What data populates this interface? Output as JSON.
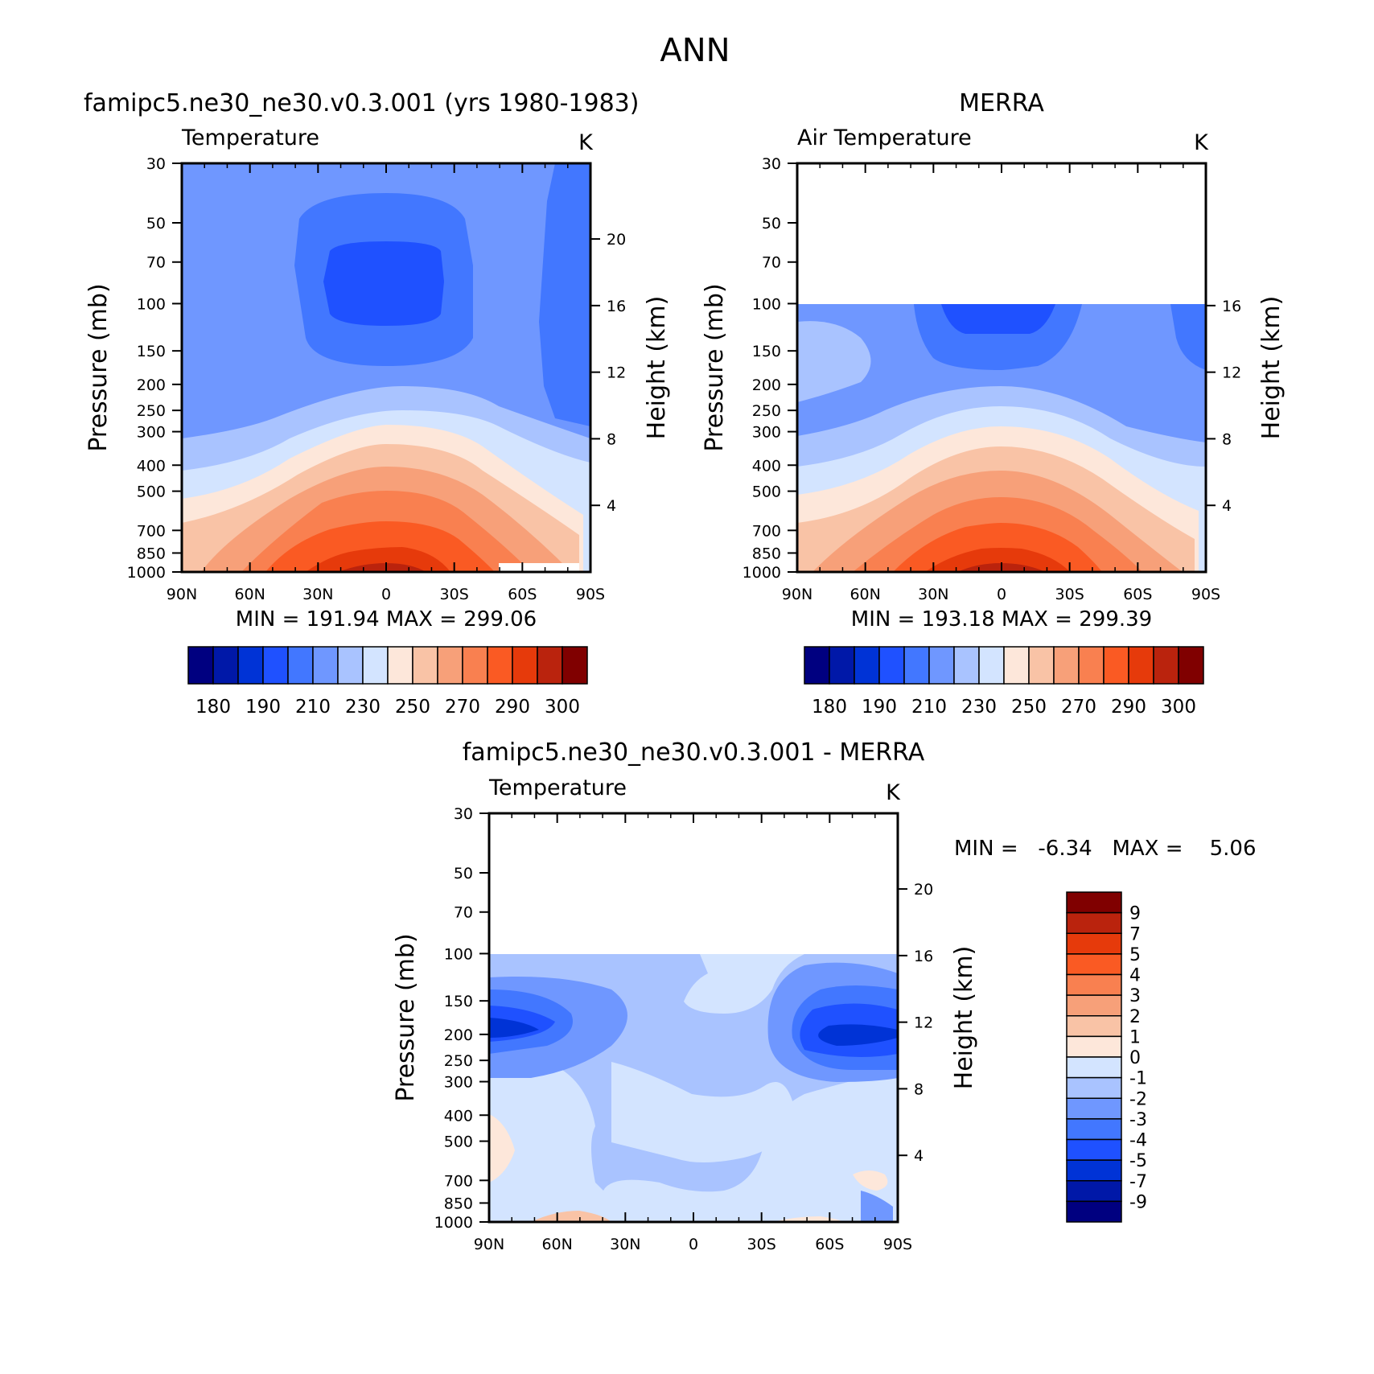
{
  "page_title": "ANN",
  "colors": {
    "abs_scale": [
      "#000080",
      "#0018a8",
      "#0033d6",
      "#1f51ff",
      "#4277ff",
      "#6f97ff",
      "#a9c3ff",
      "#d3e4ff",
      "#fde7da",
      "#f9c3a6",
      "#f7a079",
      "#f98050",
      "#fa5a23",
      "#e63a0b",
      "#ba230d",
      "#800000"
    ],
    "diff_scale": [
      "#000080",
      "#0018a8",
      "#0033d6",
      "#1f51ff",
      "#4277ff",
      "#6f97ff",
      "#a9c3ff",
      "#d3e4ff",
      "#fde7da",
      "#f9c3a6",
      "#f7a079",
      "#f98050",
      "#fa5a23",
      "#e63a0b",
      "#ba230d",
      "#800000"
    ]
  },
  "axes": {
    "ylabel_left": "Pressure (mb)",
    "ylabel_right": "Height (km)",
    "pressure_ticks": [
      "30",
      "50",
      "70",
      "100",
      "150",
      "200",
      "250",
      "300",
      "400",
      "500",
      "700",
      "850",
      "1000"
    ],
    "lat_ticks": [
      "90N",
      "60N",
      "30N",
      "0",
      "30S",
      "60S",
      "90S"
    ]
  },
  "panels": {
    "model": {
      "case_title": "famipc5.ne30_ne30.v0.3.001 (yrs 1980-1983)",
      "var_label": "Temperature",
      "units": "K",
      "stats": "MIN = 191.94   MAX = 299.06",
      "height_ticks": [
        "20",
        "16",
        "12",
        "8",
        "4"
      ],
      "colorbar_labels": [
        "180",
        "190",
        "210",
        "230",
        "250",
        "270",
        "290",
        "300"
      ]
    },
    "obs": {
      "case_title": "MERRA",
      "var_label": "Air Temperature",
      "units": "K",
      "stats": "MIN = 193.18   MAX = 299.39",
      "height_ticks": [
        "16",
        "12",
        "8",
        "4"
      ],
      "colorbar_labels": [
        "180",
        "190",
        "210",
        "230",
        "250",
        "270",
        "290",
        "300"
      ]
    },
    "diff": {
      "case_title": "famipc5.ne30_ne30.v0.3.001 - MERRA",
      "var_label": "Temperature",
      "units": "K",
      "stats": "MIN =   -6.34   MAX =    5.06",
      "height_ticks": [
        "20",
        "16",
        "12",
        "8",
        "4"
      ],
      "colorbar_labels": [
        "9",
        "7",
        "5",
        "4",
        "3",
        "2",
        "1",
        "0",
        "-1",
        "-2",
        "-3",
        "-4",
        "-5",
        "-7",
        "-9"
      ]
    }
  },
  "chart_data": [
    {
      "type": "heatmap",
      "title": "famipc5.ne30_ne30.v0.3.001 (yrs 1980-1983)",
      "subtitle": "Temperature",
      "xlabel": "",
      "ylabel": "Pressure (mb)",
      "x_ticks": [
        "90N",
        "60N",
        "30N",
        "0",
        "30S",
        "60S",
        "90S"
      ],
      "y_ticks": [
        30,
        50,
        70,
        100,
        150,
        200,
        250,
        300,
        400,
        500,
        700,
        850,
        1000
      ],
      "y_scale": "log",
      "units": "K",
      "min": 191.94,
      "max": 299.06,
      "levels": [
        180,
        185,
        190,
        200,
        210,
        220,
        230,
        240,
        250,
        260,
        270,
        280,
        290,
        295,
        300
      ]
    },
    {
      "type": "heatmap",
      "title": "MERRA",
      "subtitle": "Air Temperature",
      "xlabel": "",
      "ylabel": "Pressure (mb)",
      "x_ticks": [
        "90N",
        "60N",
        "30N",
        "0",
        "30S",
        "60S",
        "90S"
      ],
      "y_ticks": [
        30,
        50,
        70,
        100,
        150,
        200,
        250,
        300,
        400,
        500,
        700,
        850,
        1000
      ],
      "y_scale": "log",
      "units": "K",
      "min": 193.18,
      "max": 299.39,
      "levels": [
        180,
        185,
        190,
        200,
        210,
        220,
        230,
        240,
        250,
        260,
        270,
        280,
        290,
        295,
        300
      ]
    },
    {
      "type": "heatmap",
      "title": "famipc5.ne30_ne30.v0.3.001 - MERRA",
      "subtitle": "Temperature",
      "xlabel": "",
      "ylabel": "Pressure (mb)",
      "x_ticks": [
        "90N",
        "60N",
        "30N",
        "0",
        "30S",
        "60S",
        "90S"
      ],
      "y_ticks": [
        30,
        50,
        70,
        100,
        150,
        200,
        250,
        300,
        400,
        500,
        700,
        850,
        1000
      ],
      "y_scale": "log",
      "units": "K",
      "min": -6.34,
      "max": 5.06,
      "levels": [
        -9,
        -7,
        -5,
        -4,
        -3,
        -2,
        -1,
        0,
        1,
        2,
        3,
        4,
        5,
        7,
        9
      ]
    }
  ]
}
